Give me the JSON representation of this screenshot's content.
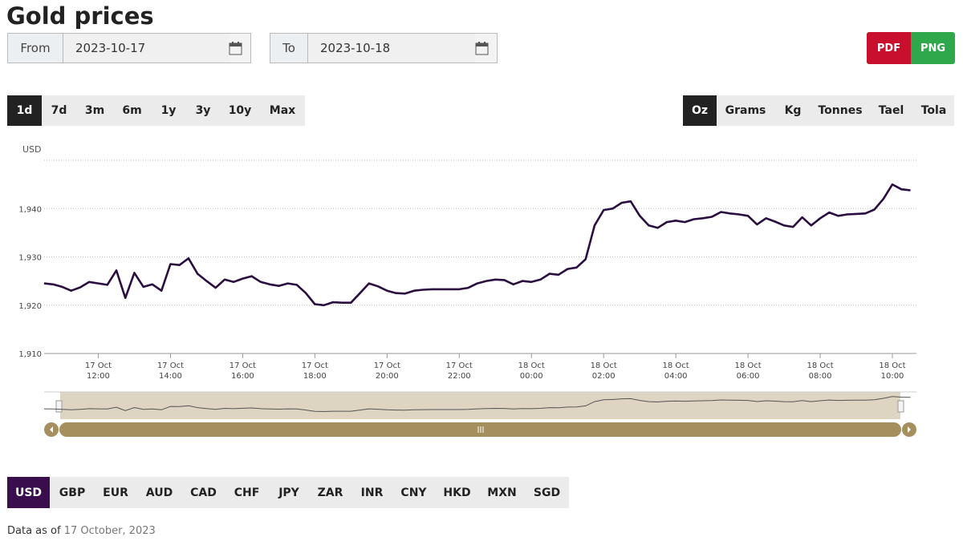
{
  "header": {
    "title": "Gold prices"
  },
  "from": {
    "label": "From",
    "value": "2023-10-17"
  },
  "to": {
    "label": "To",
    "value": "2023-10-18"
  },
  "export": {
    "buttons": [
      "PDF",
      "PNG"
    ]
  },
  "ranges": {
    "buttons": [
      "1d",
      "7d",
      "3m",
      "6m",
      "1y",
      "3y",
      "10y",
      "Max"
    ],
    "selected": 0
  },
  "units": {
    "buttons": [
      "Oz",
      "Grams",
      "Kg",
      "Tonnes",
      "Tael",
      "Tola"
    ],
    "selected": 0
  },
  "chart_data": {
    "type": "line",
    "y_label": "USD",
    "ylim": [
      1910,
      1950
    ],
    "yticks": [
      {
        "value": 1910,
        "label": "1,910"
      },
      {
        "value": 1920,
        "label": "1,920"
      },
      {
        "value": 1930,
        "label": "1,930"
      },
      {
        "value": 1940,
        "label": "1,940"
      }
    ],
    "xlim": [
      "17 Oct 10:30",
      "18 Oct 10:40"
    ],
    "xticks": [
      {
        "value": "17 Oct 12:00",
        "label": [
          "17 Oct",
          "12:00"
        ]
      },
      {
        "value": "17 Oct 14:00",
        "label": [
          "17 Oct",
          "14:00"
        ]
      },
      {
        "value": "17 Oct 16:00",
        "label": [
          "17 Oct",
          "16:00"
        ]
      },
      {
        "value": "17 Oct 18:00",
        "label": [
          "17 Oct",
          "18:00"
        ]
      },
      {
        "value": "17 Oct 20:00",
        "label": [
          "17 Oct",
          "20:00"
        ]
      },
      {
        "value": "17 Oct 22:00",
        "label": [
          "17 Oct",
          "22:00"
        ]
      },
      {
        "value": "18 Oct 00:00",
        "label": [
          "18 Oct",
          "00:00"
        ]
      },
      {
        "value": "18 Oct 02:00",
        "label": [
          "18 Oct",
          "02:00"
        ]
      },
      {
        "value": "18 Oct 04:00",
        "label": [
          "18 Oct",
          "04:00"
        ]
      },
      {
        "value": "18 Oct 06:00",
        "label": [
          "18 Oct",
          "06:00"
        ]
      },
      {
        "value": "18 Oct 08:00",
        "label": [
          "18 Oct",
          "08:00"
        ]
      },
      {
        "value": "18 Oct 10:00",
        "label": [
          "18 Oct",
          "10:00"
        ]
      }
    ],
    "grid": true,
    "x": [
      "17 Oct 10:30",
      "17 Oct 10:45",
      "17 Oct 11:00",
      "17 Oct 11:15",
      "17 Oct 11:30",
      "17 Oct 11:45",
      "17 Oct 12:00",
      "17 Oct 12:15",
      "17 Oct 12:30",
      "17 Oct 12:45",
      "17 Oct 13:00",
      "17 Oct 13:15",
      "17 Oct 13:30",
      "17 Oct 13:45",
      "17 Oct 14:00",
      "17 Oct 14:15",
      "17 Oct 14:30",
      "17 Oct 14:45",
      "17 Oct 15:00",
      "17 Oct 15:15",
      "17 Oct 15:30",
      "17 Oct 15:45",
      "17 Oct 16:00",
      "17 Oct 16:15",
      "17 Oct 16:30",
      "17 Oct 16:45",
      "17 Oct 17:00",
      "17 Oct 17:15",
      "17 Oct 17:30",
      "17 Oct 17:45",
      "17 Oct 18:00",
      "17 Oct 18:15",
      "17 Oct 18:30",
      "17 Oct 18:45",
      "17 Oct 19:00",
      "17 Oct 19:15",
      "17 Oct 19:30",
      "17 Oct 19:45",
      "17 Oct 20:00",
      "17 Oct 20:15",
      "17 Oct 20:30",
      "17 Oct 20:45",
      "17 Oct 21:00",
      "17 Oct 21:15",
      "17 Oct 21:30",
      "17 Oct 21:45",
      "17 Oct 22:00",
      "17 Oct 22:15",
      "17 Oct 22:30",
      "17 Oct 22:45",
      "17 Oct 23:00",
      "17 Oct 23:15",
      "17 Oct 23:30",
      "17 Oct 23:45",
      "18 Oct 00:00",
      "18 Oct 00:15",
      "18 Oct 00:30",
      "18 Oct 00:45",
      "18 Oct 01:00",
      "18 Oct 01:15",
      "18 Oct 01:30",
      "18 Oct 01:45",
      "18 Oct 02:00",
      "18 Oct 02:15",
      "18 Oct 02:30",
      "18 Oct 02:45",
      "18 Oct 03:00",
      "18 Oct 03:15",
      "18 Oct 03:30",
      "18 Oct 03:45",
      "18 Oct 04:00",
      "18 Oct 04:15",
      "18 Oct 04:30",
      "18 Oct 04:45",
      "18 Oct 05:00",
      "18 Oct 05:15",
      "18 Oct 05:30",
      "18 Oct 05:45",
      "18 Oct 06:00",
      "18 Oct 06:15",
      "18 Oct 06:30",
      "18 Oct 06:45",
      "18 Oct 07:00",
      "18 Oct 07:15",
      "18 Oct 07:30",
      "18 Oct 07:45",
      "18 Oct 08:00",
      "18 Oct 08:15",
      "18 Oct 08:30",
      "18 Oct 08:45",
      "18 Oct 09:00",
      "18 Oct 09:15",
      "18 Oct 09:30",
      "18 Oct 09:45",
      "18 Oct 10:00",
      "18 Oct 10:15",
      "18 Oct 10:30"
    ],
    "series": [
      {
        "color": "#2b0d3f",
        "values": [
          1924.5,
          1924.3,
          1923.8,
          1923.0,
          1923.7,
          1924.8,
          1924.5,
          1924.2,
          1927.2,
          1921.5,
          1926.7,
          1923.8,
          1924.3,
          1923.0,
          1928.5,
          1928.3,
          1929.7,
          1926.5,
          1925.0,
          1923.6,
          1925.3,
          1924.8,
          1925.5,
          1926.0,
          1924.8,
          1924.3,
          1924.0,
          1924.5,
          1924.2,
          1922.5,
          1920.2,
          1920.0,
          1920.6,
          1920.5,
          1920.5,
          1922.5,
          1924.5,
          1923.9,
          1923.0,
          1922.5,
          1922.4,
          1923.0,
          1923.2,
          1923.3,
          1923.3,
          1923.3,
          1923.3,
          1923.6,
          1924.5,
          1925.0,
          1925.3,
          1925.2,
          1924.3,
          1925.0,
          1924.8,
          1925.3,
          1926.5,
          1926.3,
          1927.5,
          1927.8,
          1929.5,
          1936.5,
          1939.7,
          1940.0,
          1941.2,
          1941.5,
          1938.5,
          1936.5,
          1936.0,
          1937.2,
          1937.5,
          1937.2,
          1937.8,
          1938.0,
          1938.3,
          1939.3,
          1939.0,
          1938.8,
          1938.5,
          1936.7,
          1938.0,
          1937.3,
          1936.5,
          1936.2,
          1938.2,
          1936.5,
          1938.0,
          1939.2,
          1938.5,
          1938.8,
          1938.9,
          1939.0,
          1939.8,
          1942.0,
          1945.0,
          1944.0,
          1943.8
        ]
      }
    ]
  },
  "currencies": {
    "buttons": [
      "USD",
      "GBP",
      "EUR",
      "AUD",
      "CAD",
      "CHF",
      "JPY",
      "ZAR",
      "INR",
      "CNY",
      "HKD",
      "MXN",
      "SGD"
    ],
    "selected": 0
  },
  "footer": {
    "label": "Data as of",
    "date": "17 October, 2023"
  }
}
